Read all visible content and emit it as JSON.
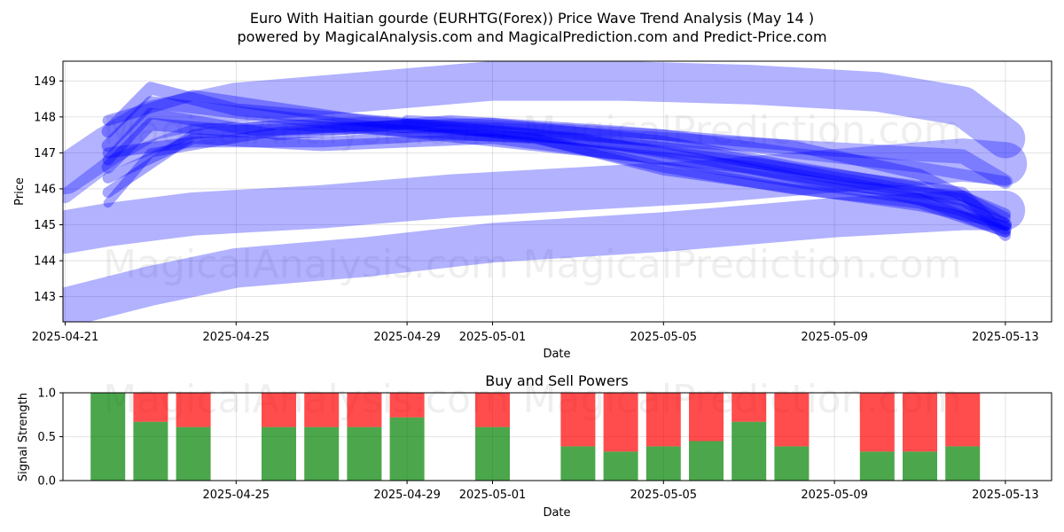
{
  "title_line1": "Euro With Haitian gourde (EURHTG(Forex)) Price Wave Trend Analysis (May 14 )",
  "title_line2": "powered by MagicalAnalysis.com and MagicalPrediction.com and Predict-Price.com",
  "watermarks": [
    "MagicalAnalysis.com",
    "MagicalPrediction.com"
  ],
  "colors": {
    "wave": "#0000ff",
    "buy": "#008000",
    "sell": "#ff0000",
    "grid": "#b0b0b0"
  },
  "chart_data": [
    {
      "type": "area",
      "name": "price-wave",
      "title": "",
      "xlabel": "Date",
      "ylabel": "Price",
      "x_range": [
        "2025-04-21",
        "2025-05-13"
      ],
      "ylim": [
        142.3,
        149.55
      ],
      "x_ticks": [
        "2025-04-21",
        "2025-04-25",
        "2025-04-29",
        "2025-05-01",
        "2025-05-05",
        "2025-05-09",
        "2025-05-13"
      ],
      "y_ticks": [
        143,
        144,
        145,
        146,
        147,
        148,
        149
      ],
      "grid": true,
      "bands": [
        {
          "x": [
            "2025-04-21",
            "2025-04-22",
            "2025-04-23",
            "2025-04-25",
            "2025-04-28",
            "2025-05-01",
            "2025-05-04",
            "2025-05-07",
            "2025-05-10",
            "2025-05-12",
            "2025-05-13"
          ],
          "y": [
            146.4,
            147.2,
            147.9,
            148.4,
            148.7,
            149.0,
            149.0,
            148.9,
            148.7,
            148.3,
            147.4
          ],
          "width": 1.1,
          "opacity": 0.3
        },
        {
          "x": [
            "2025-04-21",
            "2025-04-22",
            "2025-04-24",
            "2025-04-27",
            "2025-04-30",
            "2025-05-03",
            "2025-05-06",
            "2025-05-09",
            "2025-05-12",
            "2025-05-13"
          ],
          "y": [
            144.8,
            145.0,
            145.3,
            145.5,
            145.8,
            146.0,
            146.2,
            146.5,
            146.8,
            146.7
          ],
          "width": 1.2,
          "opacity": 0.3
        },
        {
          "x": [
            "2025-04-21",
            "2025-04-23",
            "2025-04-25",
            "2025-04-28",
            "2025-05-01",
            "2025-05-05",
            "2025-05-09",
            "2025-05-12",
            "2025-05-13"
          ],
          "y": [
            142.7,
            143.3,
            143.8,
            144.1,
            144.5,
            144.8,
            145.2,
            145.4,
            145.4
          ],
          "width": 1.1,
          "opacity": 0.3
        },
        {
          "x": [
            "2025-04-22",
            "2025-04-23",
            "2025-04-25",
            "2025-04-28",
            "2025-05-02",
            "2025-05-06",
            "2025-05-09",
            "2025-05-12",
            "2025-05-13"
          ],
          "y": [
            147.6,
            148.8,
            148.2,
            147.9,
            147.5,
            147.0,
            146.3,
            145.7,
            145.0
          ],
          "width": 0.35,
          "opacity": 0.35
        },
        {
          "x": [
            "2025-04-22",
            "2025-04-23",
            "2025-04-26",
            "2025-04-29",
            "2025-05-03",
            "2025-05-07",
            "2025-05-10",
            "2025-05-12",
            "2025-05-13"
          ],
          "y": [
            147.2,
            148.4,
            148.0,
            147.6,
            147.1,
            146.6,
            146.0,
            145.4,
            144.9
          ],
          "width": 0.35,
          "opacity": 0.35
        },
        {
          "x": [
            "2025-04-22",
            "2025-04-23",
            "2025-04-25",
            "2025-04-28",
            "2025-05-01",
            "2025-05-05",
            "2025-05-08",
            "2025-05-11",
            "2025-05-13"
          ],
          "y": [
            146.6,
            147.8,
            147.6,
            147.7,
            147.8,
            147.3,
            146.6,
            146.0,
            145.0
          ],
          "width": 0.35,
          "opacity": 0.35
        },
        {
          "x": [
            "2025-04-22",
            "2025-04-24",
            "2025-04-27",
            "2025-05-01",
            "2025-05-05",
            "2025-05-08",
            "2025-05-11",
            "2025-05-13"
          ],
          "y": [
            146.3,
            147.4,
            147.2,
            147.4,
            146.8,
            146.2,
            145.7,
            144.8
          ],
          "width": 0.3,
          "opacity": 0.35
        },
        {
          "x": [
            "2025-04-22",
            "2025-04-23",
            "2025-04-26",
            "2025-04-30",
            "2025-05-04",
            "2025-05-08",
            "2025-05-11",
            "2025-05-13"
          ],
          "y": [
            146.8,
            148.1,
            147.5,
            147.9,
            147.6,
            147.2,
            146.4,
            145.2
          ],
          "width": 0.3,
          "opacity": 0.35
        },
        {
          "x": [
            "2025-04-22",
            "2025-04-24",
            "2025-04-28",
            "2025-05-02",
            "2025-05-06",
            "2025-05-09",
            "2025-05-12",
            "2025-05-13"
          ],
          "y": [
            147.9,
            148.6,
            147.9,
            147.5,
            146.9,
            146.4,
            145.9,
            144.7
          ],
          "width": 0.3,
          "opacity": 0.35
        },
        {
          "x": [
            "2025-04-21",
            "2025-04-22",
            "2025-04-24",
            "2025-04-28",
            "2025-05-02",
            "2025-05-06",
            "2025-05-09",
            "2025-05-12",
            "2025-05-13"
          ],
          "y": [
            145.8,
            146.7,
            147.6,
            147.8,
            147.6,
            147.3,
            147.1,
            146.9,
            146.2
          ],
          "width": 0.4,
          "opacity": 0.3
        },
        {
          "x": [
            "2025-04-22",
            "2025-04-24",
            "2025-04-27",
            "2025-04-30",
            "2025-05-03",
            "2025-05-06",
            "2025-05-09",
            "2025-05-12",
            "2025-05-13"
          ],
          "y": [
            147.0,
            147.3,
            147.3,
            147.5,
            147.4,
            146.8,
            146.1,
            145.8,
            145.3
          ],
          "width": 0.3,
          "opacity": 0.35
        },
        {
          "x": [
            "2025-04-22",
            "2025-04-24",
            "2025-04-26",
            "2025-04-29",
            "2025-05-02",
            "2025-05-05",
            "2025-05-08",
            "2025-05-11",
            "2025-05-13"
          ],
          "y": [
            145.9,
            147.5,
            147.8,
            147.6,
            147.4,
            146.6,
            146.0,
            145.6,
            144.8
          ],
          "width": 0.3,
          "opacity": 0.35
        },
        {
          "x": [
            "2025-04-22",
            "2025-04-23",
            "2025-04-26",
            "2025-04-29",
            "2025-05-02",
            "2025-05-05",
            "2025-05-08",
            "2025-05-11",
            "2025-05-13"
          ],
          "y": [
            145.6,
            147.0,
            147.6,
            147.8,
            147.4,
            146.5,
            146.0,
            145.5,
            145.0
          ],
          "width": 0.25,
          "opacity": 0.35
        },
        {
          "x": [
            "2025-04-29",
            "2025-05-02",
            "2025-05-05",
            "2025-05-08",
            "2025-05-11",
            "2025-05-13"
          ],
          "y": [
            147.9,
            147.7,
            147.5,
            147.0,
            146.6,
            146.2
          ],
          "width": 0.3,
          "opacity": 0.3
        }
      ]
    },
    {
      "type": "bar",
      "name": "buy-sell-powers",
      "title": "Buy and Sell Powers",
      "xlabel": "Date",
      "ylabel": "Signal Strength",
      "ylim": [
        0,
        1
      ],
      "y_ticks": [
        "0.0",
        "0.5",
        "1.0"
      ],
      "x_ticks": [
        "2025-04-25",
        "2025-04-29",
        "2025-05-01",
        "2025-05-05",
        "2025-05-09",
        "2025-05-13"
      ],
      "grid": true,
      "x": [
        "2025-04-22",
        "2025-04-23",
        "2025-04-24",
        "2025-04-26",
        "2025-04-27",
        "2025-04-28",
        "2025-04-29",
        "2025-05-01",
        "2025-05-03",
        "2025-05-04",
        "2025-05-05",
        "2025-05-06",
        "2025-05-07",
        "2025-05-08",
        "2025-05-10",
        "2025-05-11",
        "2025-05-12"
      ],
      "series": [
        {
          "name": "Buy",
          "values": [
            1.0,
            0.67,
            0.61,
            0.61,
            0.61,
            0.61,
            0.72,
            0.61,
            0.39,
            0.33,
            0.39,
            0.45,
            0.67,
            0.39,
            0.33,
            0.33,
            0.39
          ]
        },
        {
          "name": "Sell",
          "values": [
            0.0,
            0.33,
            0.39,
            0.39,
            0.39,
            0.39,
            0.28,
            0.39,
            0.61,
            0.67,
            0.61,
            0.55,
            0.33,
            0.61,
            0.67,
            0.67,
            0.61
          ]
        }
      ]
    }
  ]
}
